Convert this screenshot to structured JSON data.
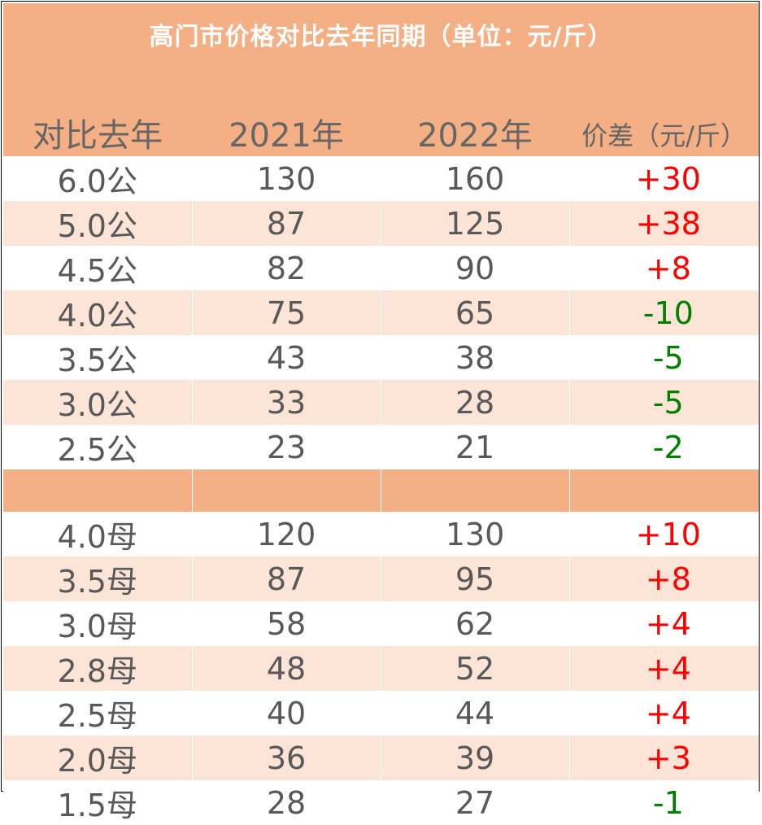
{
  "title": "高门市价格对比去年同期（单位：元/斤）",
  "headers": [
    "对比去年",
    "2021年",
    "2022年",
    "价差（元/斤）"
  ],
  "colors": {
    "header_bg": "#f4b084",
    "stripe": "#fce4d6",
    "up": "#ff0000",
    "down": "#008000",
    "text": "#595959"
  },
  "male_rows": [
    {
      "spec": "6.0公",
      "y2021": "130",
      "y2022": "160",
      "diff": "+30"
    },
    {
      "spec": "5.0公",
      "y2021": "87",
      "y2022": "125",
      "diff": "+38"
    },
    {
      "spec": "4.5公",
      "y2021": "82",
      "y2022": "90",
      "diff": "+8"
    },
    {
      "spec": "4.0公",
      "y2021": "75",
      "y2022": "65",
      "diff": "-10"
    },
    {
      "spec": "3.5公",
      "y2021": "43",
      "y2022": "38",
      "diff": "-5"
    },
    {
      "spec": "3.0公",
      "y2021": "33",
      "y2022": "28",
      "diff": "-5"
    },
    {
      "spec": "2.5公",
      "y2021": "23",
      "y2022": "21",
      "diff": "-2"
    }
  ],
  "female_rows": [
    {
      "spec": "4.0母",
      "y2021": "120",
      "y2022": "130",
      "diff": "+10"
    },
    {
      "spec": "3.5母",
      "y2021": "87",
      "y2022": "95",
      "diff": "+8"
    },
    {
      "spec": "3.0母",
      "y2021": "58",
      "y2022": "62",
      "diff": "+4"
    },
    {
      "spec": "2.8母",
      "y2021": "48",
      "y2022": "52",
      "diff": "+4"
    },
    {
      "spec": "2.5母",
      "y2021": "40",
      "y2022": "44",
      "diff": "+4"
    },
    {
      "spec": "2.0母",
      "y2021": "36",
      "y2022": "39",
      "diff": "+3"
    },
    {
      "spec": "1.5母",
      "y2021": "28",
      "y2022": "27",
      "diff": "-1"
    }
  ]
}
